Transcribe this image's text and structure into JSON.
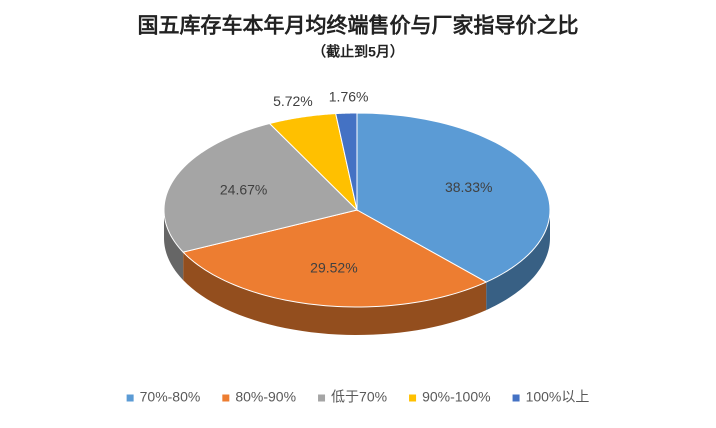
{
  "chart_data": {
    "type": "pie3d",
    "title": "国五库存车本年月均终端售价与厂家指导价之比",
    "subtitle": "（截止到5月）",
    "categories": [
      "70%-80%",
      "80%-90%",
      "低于70%",
      "90%-100%",
      "100%以上"
    ],
    "values": [
      38.33,
      29.52,
      24.67,
      5.72,
      1.76
    ],
    "value_labels": [
      "38.33%",
      "29.52%",
      "24.67%",
      "5.72%",
      "1.76%"
    ],
    "colors": [
      "#5b9bd5",
      "#ed7d31",
      "#a5a5a5",
      "#ffc000",
      "#4472c4"
    ],
    "legend": "bottom"
  }
}
